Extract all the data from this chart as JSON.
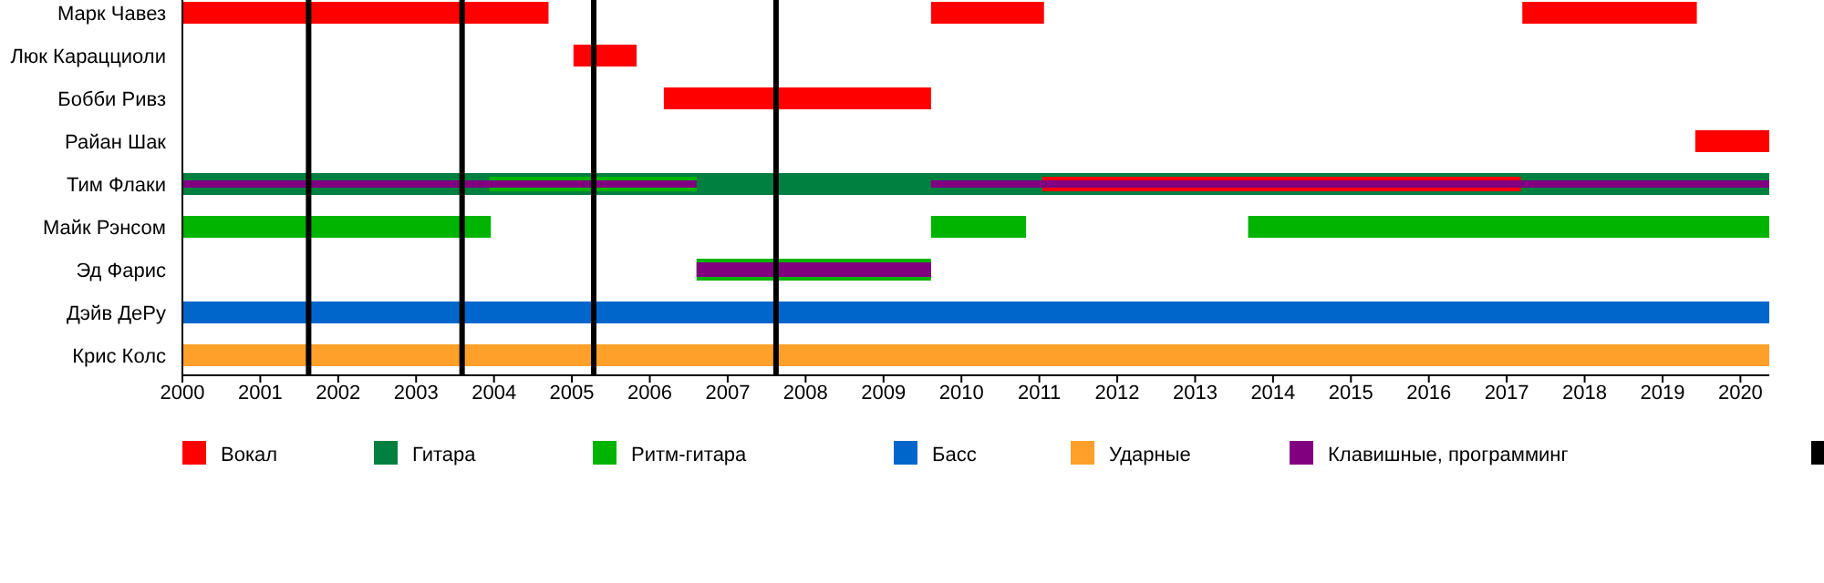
{
  "chart_data": {
    "type": "bar",
    "orientation": "horizontal",
    "categories": [
      "Марк Чавез",
      "Люк Карацциоли",
      "Бобби Ривз",
      "Райан Шак",
      "Тим Флаки",
      "Майк Рэнсом",
      "Эд Фарис",
      "Дэйв ДеРу",
      "Крис Колс"
    ],
    "xlim": [
      2000,
      2020.37
    ],
    "xticks": [
      2000,
      2001,
      2002,
      2003,
      2004,
      2005,
      2006,
      2007,
      2008,
      2009,
      2010,
      2011,
      2012,
      2013,
      2014,
      2015,
      2016,
      2017,
      2018,
      2019,
      2020
    ],
    "series": [
      {
        "name": "Вокал",
        "color": "#ff0000",
        "base": [
          2000,
          2005.02,
          2006.18,
          2019.42,
          null,
          null,
          null,
          null,
          null
        ],
        "values": [
          4.7,
          0.81,
          3.43,
          0.95,
          null,
          null,
          null,
          null,
          null
        ]
      },
      {
        "name": "Гитара",
        "color": "#008040",
        "base": [
          null,
          null,
          null,
          null,
          2000,
          null,
          null,
          null,
          null
        ],
        "values": [
          null,
          null,
          null,
          null,
          20.37,
          null,
          null,
          null,
          null
        ]
      },
      {
        "name": "Ритм-гитара",
        "color": "#00b400",
        "base": [
          null,
          null,
          null,
          null,
          null,
          2000,
          2006.6,
          null,
          null
        ],
        "values": [
          null,
          null,
          null,
          null,
          null,
          3.96,
          3.01,
          null,
          null
        ]
      },
      {
        "name": "Басс",
        "color": "#0066cc",
        "base": [
          null,
          null,
          null,
          null,
          null,
          null,
          null,
          2000,
          null
        ],
        "values": [
          null,
          null,
          null,
          null,
          null,
          null,
          null,
          20.37,
          null
        ]
      },
      {
        "name": "Ударные",
        "color": "#ffa02a",
        "base": [
          null,
          null,
          null,
          null,
          null,
          null,
          null,
          null,
          2000
        ],
        "values": [
          null,
          null,
          null,
          null,
          null,
          null,
          null,
          null,
          20.37
        ]
      },
      {
        "name": "Клавишные, программинг",
        "color": "#800080",
        "base": [
          null,
          null,
          null,
          null,
          null,
          null,
          2006.6,
          null,
          null
        ],
        "values": [
          null,
          null,
          null,
          null,
          null,
          null,
          3.01,
          null,
          null
        ]
      },
      {
        "color": "#ff0000",
        "base": [
          2009.61,
          null,
          null,
          null,
          2011.04,
          null,
          null,
          null,
          null
        ],
        "values": [
          1.45,
          null,
          null,
          null,
          6.14,
          null,
          null,
          null,
          null
        ]
      },
      {
        "color": "#ff0000",
        "base": [
          2017.2,
          null,
          null,
          null,
          null,
          null,
          null,
          null,
          null
        ],
        "values": [
          2.24,
          null,
          null,
          null,
          null,
          null,
          null,
          null,
          null
        ]
      },
      {
        "color": "#00b400",
        "base": [
          null,
          null,
          null,
          null,
          2003.94,
          2009.61,
          null,
          null,
          null
        ],
        "values": [
          null,
          null,
          null,
          null,
          2.66,
          1.22,
          null,
          null,
          null
        ]
      },
      {
        "color": "#00b400",
        "base": [
          null,
          null,
          null,
          null,
          null,
          2013.68,
          null,
          null,
          null
        ],
        "values": [
          null,
          null,
          null,
          null,
          null,
          6.69,
          null,
          null,
          null
        ]
      },
      {
        "color": "#800080",
        "base": [
          null,
          null,
          null,
          null,
          2000,
          null,
          null,
          null,
          null
        ],
        "values": [
          null,
          null,
          null,
          null,
          6.6,
          null,
          null,
          null,
          null
        ]
      },
      {
        "color": "#800080",
        "base": [
          null,
          null,
          null,
          null,
          2009.61,
          null,
          null,
          null,
          null
        ],
        "values": [
          null,
          null,
          null,
          null,
          10.76,
          null,
          null,
          null,
          null
        ]
      }
    ],
    "ref_lines": [
      {
        "axis": "x",
        "value": 2001.62,
        "color": "#000000"
      },
      {
        "axis": "x",
        "value": 2003.59,
        "color": "#000000"
      },
      {
        "axis": "x",
        "value": 2005.28,
        "color": "#000000"
      },
      {
        "axis": "x",
        "value": 2007.62,
        "color": "#000000"
      }
    ],
    "legend": "bottom",
    "grid": false
  }
}
